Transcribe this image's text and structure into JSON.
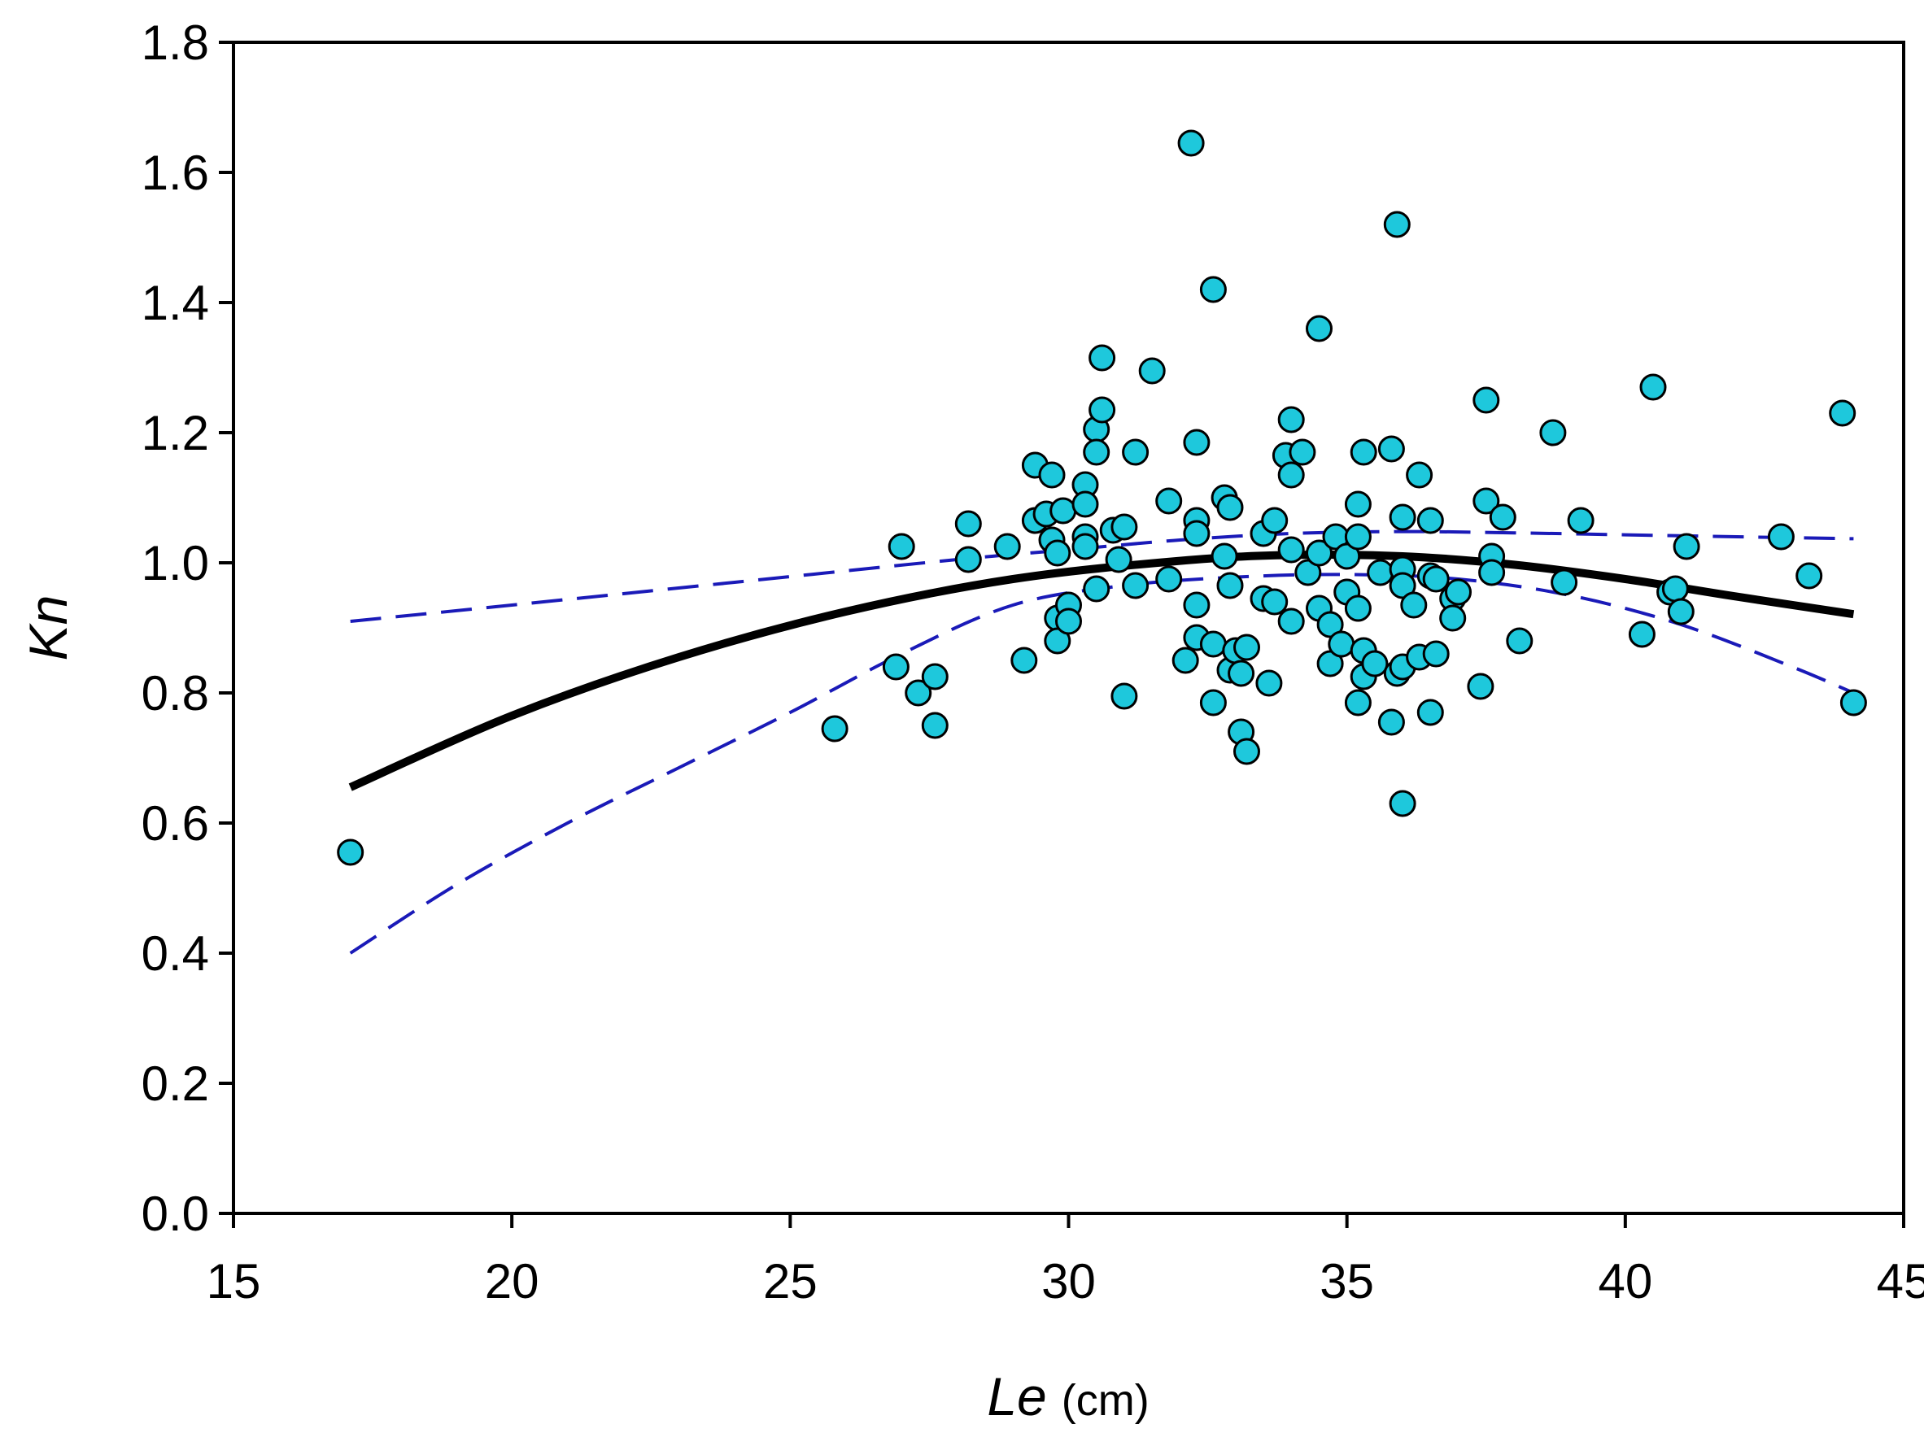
{
  "chart_data": {
    "type": "scatter",
    "title": "",
    "xlabel": "Le",
    "xlabel_unit": "(cm)",
    "ylabel": "Kn",
    "xlim": [
      15,
      45
    ],
    "ylim": [
      0.0,
      1.8
    ],
    "x_ticks": [
      "15",
      "20",
      "25",
      "30",
      "35",
      "40",
      "45"
    ],
    "y_ticks": [
      "0.0",
      "0.2",
      "0.4",
      "0.6",
      "0.8",
      "1.0",
      "1.2",
      "1.4",
      "1.6",
      "1.8"
    ],
    "grid": false,
    "colors": {
      "points": "#1ec8dc",
      "point_edge": "#000000",
      "fit": "#000000",
      "confidence": "#1a1ab8"
    },
    "series": [
      {
        "name": "observations",
        "kind": "scatter",
        "points": [
          [
            17.1,
            0.555
          ],
          [
            25.8,
            0.745
          ],
          [
            26.9,
            0.84
          ],
          [
            27.0,
            1.025
          ],
          [
            27.3,
            0.8
          ],
          [
            27.6,
            0.825
          ],
          [
            27.6,
            0.75
          ],
          [
            28.2,
            1.06
          ],
          [
            28.2,
            1.005
          ],
          [
            28.9,
            1.025
          ],
          [
            29.2,
            0.85
          ],
          [
            29.4,
            1.15
          ],
          [
            29.4,
            1.065
          ],
          [
            29.6,
            1.075
          ],
          [
            29.7,
            1.135
          ],
          [
            29.7,
            1.035
          ],
          [
            29.8,
            1.015
          ],
          [
            29.8,
            0.915
          ],
          [
            29.8,
            0.88
          ],
          [
            29.9,
            1.08
          ],
          [
            30.0,
            0.935
          ],
          [
            30.0,
            0.91
          ],
          [
            30.3,
            1.12
          ],
          [
            30.3,
            1.09
          ],
          [
            30.3,
            1.04
          ],
          [
            30.3,
            1.025
          ],
          [
            30.5,
            1.205
          ],
          [
            30.5,
            1.17
          ],
          [
            30.5,
            0.96
          ],
          [
            30.6,
            1.315
          ],
          [
            30.6,
            1.235
          ],
          [
            30.8,
            1.05
          ],
          [
            30.9,
            1.005
          ],
          [
            31.0,
            1.055
          ],
          [
            31.0,
            0.795
          ],
          [
            31.2,
            1.17
          ],
          [
            31.2,
            0.965
          ],
          [
            31.5,
            1.295
          ],
          [
            31.8,
            1.095
          ],
          [
            31.8,
            0.975
          ],
          [
            32.1,
            0.85
          ],
          [
            32.2,
            1.645
          ],
          [
            32.3,
            1.185
          ],
          [
            32.3,
            1.065
          ],
          [
            32.3,
            1.045
          ],
          [
            32.3,
            0.935
          ],
          [
            32.3,
            0.885
          ],
          [
            32.6,
            1.42
          ],
          [
            32.6,
            0.875
          ],
          [
            32.6,
            0.785
          ],
          [
            32.8,
            1.1
          ],
          [
            32.8,
            1.01
          ],
          [
            32.9,
            0.835
          ],
          [
            32.9,
            1.085
          ],
          [
            32.9,
            0.965
          ],
          [
            33.0,
            0.865
          ],
          [
            33.1,
            0.83
          ],
          [
            33.1,
            0.74
          ],
          [
            33.2,
            0.87
          ],
          [
            33.2,
            0.71
          ],
          [
            33.5,
            1.045
          ],
          [
            33.5,
            0.945
          ],
          [
            33.6,
            0.815
          ],
          [
            33.7,
            1.065
          ],
          [
            33.7,
            0.94
          ],
          [
            33.9,
            1.165
          ],
          [
            34.0,
            1.22
          ],
          [
            34.0,
            1.135
          ],
          [
            34.0,
            1.02
          ],
          [
            34.0,
            0.91
          ],
          [
            34.2,
            1.17
          ],
          [
            34.3,
            0.985
          ],
          [
            34.5,
            1.36
          ],
          [
            34.5,
            1.015
          ],
          [
            34.5,
            0.93
          ],
          [
            34.7,
            0.905
          ],
          [
            34.7,
            0.845
          ],
          [
            34.8,
            1.04
          ],
          [
            34.9,
            0.875
          ],
          [
            35.0,
            1.01
          ],
          [
            35.0,
            0.955
          ],
          [
            35.2,
            0.93
          ],
          [
            35.2,
            1.09
          ],
          [
            35.2,
            1.04
          ],
          [
            35.2,
            0.785
          ],
          [
            35.3,
            1.17
          ],
          [
            35.3,
            0.865
          ],
          [
            35.3,
            0.825
          ],
          [
            35.5,
            0.845
          ],
          [
            35.6,
            0.985
          ],
          [
            35.8,
            1.175
          ],
          [
            35.8,
            0.755
          ],
          [
            35.9,
            1.52
          ],
          [
            35.9,
            0.83
          ],
          [
            36.0,
            1.07
          ],
          [
            36.0,
            0.99
          ],
          [
            36.0,
            0.965
          ],
          [
            36.0,
            0.84
          ],
          [
            36.0,
            0.63
          ],
          [
            36.2,
            0.935
          ],
          [
            36.3,
            1.135
          ],
          [
            36.3,
            0.855
          ],
          [
            36.5,
            1.065
          ],
          [
            36.5,
            0.98
          ],
          [
            36.5,
            0.77
          ],
          [
            36.6,
            0.975
          ],
          [
            36.6,
            0.86
          ],
          [
            36.9,
            0.945
          ],
          [
            36.9,
            0.915
          ],
          [
            37.0,
            0.955
          ],
          [
            37.4,
            0.81
          ],
          [
            37.5,
            1.25
          ],
          [
            37.5,
            1.095
          ],
          [
            37.6,
            1.01
          ],
          [
            37.6,
            0.985
          ],
          [
            37.8,
            1.07
          ],
          [
            38.1,
            0.88
          ],
          [
            38.7,
            1.2
          ],
          [
            38.9,
            0.97
          ],
          [
            39.2,
            1.065
          ],
          [
            40.3,
            0.89
          ],
          [
            40.5,
            1.27
          ],
          [
            40.8,
            0.955
          ],
          [
            40.9,
            0.96
          ],
          [
            41.0,
            0.925
          ],
          [
            41.1,
            1.025
          ],
          [
            42.8,
            1.04
          ],
          [
            43.3,
            0.98
          ],
          [
            43.9,
            1.23
          ],
          [
            44.1,
            0.785
          ]
        ]
      },
      {
        "name": "fitted curve",
        "kind": "line",
        "style": "solid",
        "x": [
          17.1,
          20,
          23,
          26,
          29,
          32,
          34,
          36,
          38,
          40,
          42,
          44.1
        ],
        "y": [
          0.655,
          0.765,
          0.855,
          0.925,
          0.975,
          1.003,
          1.012,
          1.01,
          0.997,
          0.975,
          0.948,
          0.921
        ]
      },
      {
        "name": "upper confidence band",
        "kind": "line",
        "style": "dashed",
        "x": [
          17.1,
          20,
          24,
          28,
          30,
          32,
          34,
          36,
          38,
          40,
          42,
          44.1
        ],
        "y": [
          0.91,
          0.935,
          0.97,
          1.005,
          1.02,
          1.035,
          1.045,
          1.048,
          1.046,
          1.043,
          1.04,
          1.037
        ]
      },
      {
        "name": "lower confidence band",
        "kind": "line",
        "style": "dashed",
        "x": [
          17.1,
          19,
          21,
          23,
          25,
          27,
          29,
          31,
          33,
          35,
          37,
          39,
          41,
          43,
          44.1
        ],
        "y": [
          0.4,
          0.505,
          0.6,
          0.685,
          0.77,
          0.86,
          0.935,
          0.965,
          0.978,
          0.982,
          0.975,
          0.95,
          0.905,
          0.84,
          0.8
        ]
      }
    ]
  }
}
